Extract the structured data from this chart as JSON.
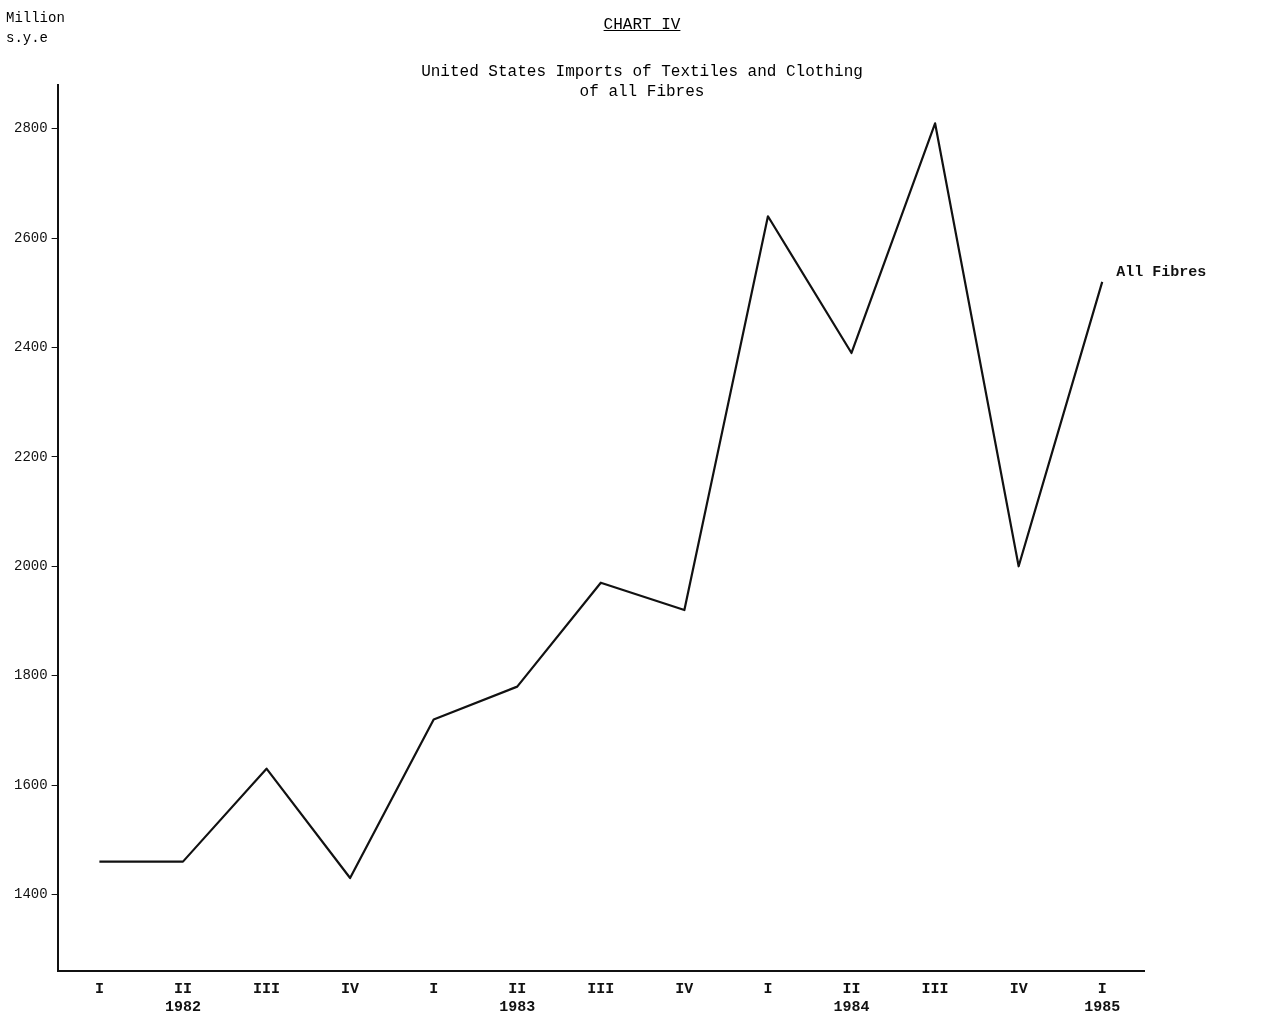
{
  "chart_data": {
    "type": "line",
    "title": "CHART IV",
    "subtitle": "United States Imports of Textiles and Clothing\nof all Fibres",
    "ylabel": "Million\ns.y.e",
    "categories": [
      "I",
      "II\n1982",
      "III",
      "IV",
      "I",
      "II\n1983",
      "III",
      "IV",
      "I",
      "II\n1984",
      "III",
      "IV",
      "I\n1985"
    ],
    "series": [
      {
        "name": "All Fibres",
        "color": "#111111",
        "values": [
          1460,
          1460,
          1630,
          1430,
          1720,
          1780,
          1970,
          1920,
          2640,
          2390,
          2810,
          2000,
          2520
        ]
      }
    ],
    "ylim": [
      1260,
      2880
    ],
    "yticks": [
      1400,
      1600,
      1800,
      2000,
      2200,
      2400,
      2600,
      2800
    ],
    "grid": false,
    "legend": false,
    "marker": "none",
    "line_style": "solid"
  }
}
